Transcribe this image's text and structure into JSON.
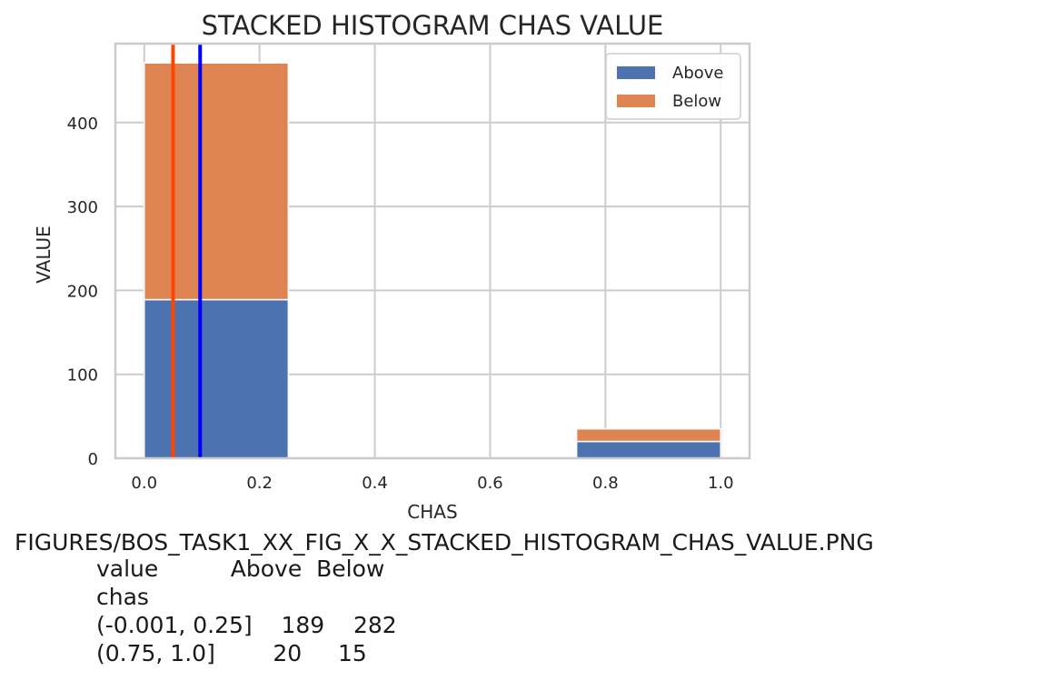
{
  "chart_data": {
    "type": "bar",
    "stacked": true,
    "title": "STACKED HISTOGRAM CHAS VALUE",
    "xlabel": "CHAS",
    "ylabel": "VALUE",
    "xlim": [
      -0.05,
      1.05
    ],
    "ylim": [
      0,
      494
    ],
    "xticks": [
      "0.0",
      "0.2",
      "0.4",
      "0.6",
      "0.8",
      "1.0"
    ],
    "yticks": [
      "0",
      "100",
      "200",
      "300",
      "400"
    ],
    "bins": [
      {
        "x0": 0.0,
        "x1": 0.25
      },
      {
        "x0": 0.75,
        "x1": 1.0
      }
    ],
    "series": [
      {
        "name": "Above",
        "color": "#4c72b0",
        "values": [
          189,
          20
        ]
      },
      {
        "name": "Below",
        "color": "#dd8452",
        "values": [
          282,
          15
        ]
      }
    ],
    "vlines": [
      {
        "x": 0.05,
        "color": "#ff4500"
      },
      {
        "x": 0.097,
        "color": "#0000ff"
      }
    ],
    "grid": true,
    "legend_position": "top-right"
  },
  "caption": "FIGURES/BOS_TASK1_XX_FIG_X_X_STACKED_HISTOGRAM_CHAS_VALUE.PNG",
  "table": {
    "header": "value          Above  Below",
    "index_name": "chas",
    "rows": [
      "(-0.001, 0.25]    189    282",
      "(0.75, 1.0]        20     15"
    ]
  }
}
